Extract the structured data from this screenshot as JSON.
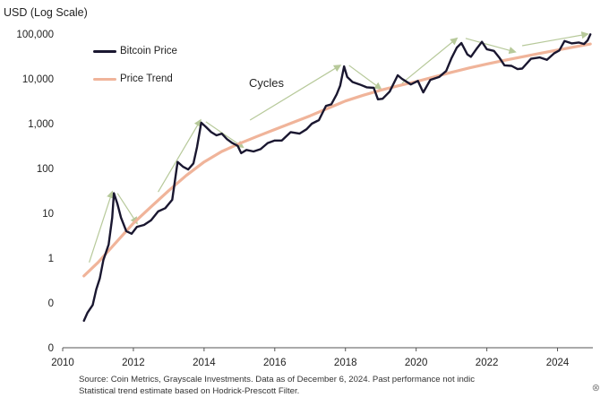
{
  "chart_data": {
    "type": "line",
    "ylabel": "USD (Log Scale)",
    "y_scale": "log",
    "y_ticks": [
      "100,000",
      "10,000",
      "1,000",
      "100",
      "10",
      "1",
      "0",
      "0"
    ],
    "x_ticks": [
      "2010",
      "2012",
      "2014",
      "2016",
      "2018",
      "2020",
      "2022",
      "2024"
    ],
    "xlim": [
      2010,
      2025
    ],
    "grid": false,
    "legend_position": "top-left",
    "series": [
      {
        "name": "Bitcoin Price",
        "color": "#1a1730",
        "points": [
          [
            2010.6,
            0.04
          ],
          [
            2010.7,
            0.06
          ],
          [
            2010.85,
            0.09
          ],
          [
            2010.95,
            0.2
          ],
          [
            2011.05,
            0.35
          ],
          [
            2011.15,
            0.9
          ],
          [
            2011.3,
            2.0
          ],
          [
            2011.4,
            8
          ],
          [
            2011.45,
            28
          ],
          [
            2011.55,
            16
          ],
          [
            2011.65,
            8
          ],
          [
            2011.8,
            4
          ],
          [
            2011.95,
            3.5
          ],
          [
            2012.1,
            5
          ],
          [
            2012.3,
            5.5
          ],
          [
            2012.5,
            7
          ],
          [
            2012.7,
            11
          ],
          [
            2012.9,
            13
          ],
          [
            2013.1,
            20
          ],
          [
            2013.25,
            140
          ],
          [
            2013.4,
            110
          ],
          [
            2013.55,
            95
          ],
          [
            2013.7,
            130
          ],
          [
            2013.8,
            300
          ],
          [
            2013.92,
            1050
          ],
          [
            2014.05,
            850
          ],
          [
            2014.2,
            650
          ],
          [
            2014.35,
            550
          ],
          [
            2014.5,
            600
          ],
          [
            2014.65,
            450
          ],
          [
            2014.8,
            370
          ],
          [
            2014.95,
            320
          ],
          [
            2015.05,
            220
          ],
          [
            2015.2,
            260
          ],
          [
            2015.4,
            240
          ],
          [
            2015.6,
            270
          ],
          [
            2015.8,
            370
          ],
          [
            2016.0,
            420
          ],
          [
            2016.2,
            420
          ],
          [
            2016.45,
            650
          ],
          [
            2016.7,
            600
          ],
          [
            2016.9,
            750
          ],
          [
            2017.05,
            1000
          ],
          [
            2017.25,
            1200
          ],
          [
            2017.45,
            2500
          ],
          [
            2017.6,
            2700
          ],
          [
            2017.75,
            4500
          ],
          [
            2017.85,
            7000
          ],
          [
            2017.96,
            19000
          ],
          [
            2018.05,
            11000
          ],
          [
            2018.2,
            8500
          ],
          [
            2018.4,
            7500
          ],
          [
            2018.6,
            6500
          ],
          [
            2018.8,
            6300
          ],
          [
            2018.92,
            3500
          ],
          [
            2019.05,
            3600
          ],
          [
            2019.25,
            5200
          ],
          [
            2019.48,
            12000
          ],
          [
            2019.6,
            10000
          ],
          [
            2019.85,
            7500
          ],
          [
            2020.05,
            9000
          ],
          [
            2020.2,
            5000
          ],
          [
            2020.4,
            9500
          ],
          [
            2020.65,
            11000
          ],
          [
            2020.85,
            15000
          ],
          [
            2021.0,
            29000
          ],
          [
            2021.15,
            50000
          ],
          [
            2021.28,
            63000
          ],
          [
            2021.45,
            35000
          ],
          [
            2021.55,
            31000
          ],
          [
            2021.7,
            46000
          ],
          [
            2021.86,
            67000
          ],
          [
            2022.0,
            46000
          ],
          [
            2022.2,
            42000
          ],
          [
            2022.35,
            30000
          ],
          [
            2022.5,
            20000
          ],
          [
            2022.7,
            19500
          ],
          [
            2022.87,
            16500
          ],
          [
            2023.0,
            17000
          ],
          [
            2023.25,
            28000
          ],
          [
            2023.5,
            30000
          ],
          [
            2023.7,
            26500
          ],
          [
            2023.9,
            37000
          ],
          [
            2024.05,
            43000
          ],
          [
            2024.2,
            70000
          ],
          [
            2024.4,
            62000
          ],
          [
            2024.6,
            65000
          ],
          [
            2024.75,
            60000
          ],
          [
            2024.85,
            72000
          ],
          [
            2024.93,
            98000
          ]
        ]
      },
      {
        "name": "Price Trend",
        "color": "#f0b49a",
        "points": [
          [
            2010.6,
            0.4
          ],
          [
            2011.0,
            0.8
          ],
          [
            2011.5,
            2.2
          ],
          [
            2012.0,
            6
          ],
          [
            2012.5,
            14
          ],
          [
            2013.0,
            32
          ],
          [
            2013.5,
            70
          ],
          [
            2014.0,
            140
          ],
          [
            2014.5,
            240
          ],
          [
            2015.0,
            360
          ],
          [
            2015.5,
            520
          ],
          [
            2016.0,
            740
          ],
          [
            2016.5,
            1050
          ],
          [
            2017.0,
            1500
          ],
          [
            2017.5,
            2200
          ],
          [
            2018.0,
            3200
          ],
          [
            2018.5,
            4300
          ],
          [
            2019.0,
            5600
          ],
          [
            2019.5,
            7000
          ],
          [
            2020.0,
            8700
          ],
          [
            2020.5,
            11000
          ],
          [
            2021.0,
            14000
          ],
          [
            2021.5,
            17500
          ],
          [
            2022.0,
            21500
          ],
          [
            2022.5,
            26000
          ],
          [
            2023.0,
            31000
          ],
          [
            2023.5,
            37000
          ],
          [
            2024.0,
            44000
          ],
          [
            2024.5,
            52000
          ],
          [
            2024.93,
            60000
          ]
        ]
      }
    ],
    "cycle_arrows": [
      {
        "from": [
          2010.75,
          0.8
        ],
        "to": [
          2011.4,
          30
        ]
      },
      {
        "from": [
          2011.55,
          28
        ],
        "to": [
          2012.1,
          6
        ]
      },
      {
        "from": [
          2012.7,
          30
        ],
        "to": [
          2013.9,
          1200
        ]
      },
      {
        "from": [
          2014.05,
          1100
        ],
        "to": [
          2015.1,
          300
        ]
      },
      {
        "from": [
          2015.3,
          1200
        ],
        "to": [
          2017.85,
          20000
        ]
      },
      {
        "from": [
          2018.1,
          20000
        ],
        "to": [
          2019.0,
          6000
        ]
      },
      {
        "from": [
          2019.6,
          8000
        ],
        "to": [
          2021.15,
          80000
        ]
      },
      {
        "from": [
          2021.4,
          80000
        ],
        "to": [
          2022.8,
          40000
        ]
      },
      {
        "from": [
          2023.0,
          55000
        ],
        "to": [
          2024.85,
          100000
        ]
      }
    ],
    "annotations": [
      "Cycles"
    ]
  },
  "legend": {
    "price_label": "Bitcoin Price",
    "trend_label": "Price Trend"
  },
  "colors": {
    "price": "#1a1730",
    "trend": "#f0b49a",
    "arrow": "#b7c99a",
    "axis": "#555555"
  },
  "source": {
    "line1": "Source: Coin Metrics, Grayscale Investments. Data as of December 6, 2024. Past performance not indic",
    "line2": "Statistical trend estimate based on Hodrick-Prescott Filter."
  },
  "cycles_label": "Cycles",
  "corner_mark": "⊗"
}
